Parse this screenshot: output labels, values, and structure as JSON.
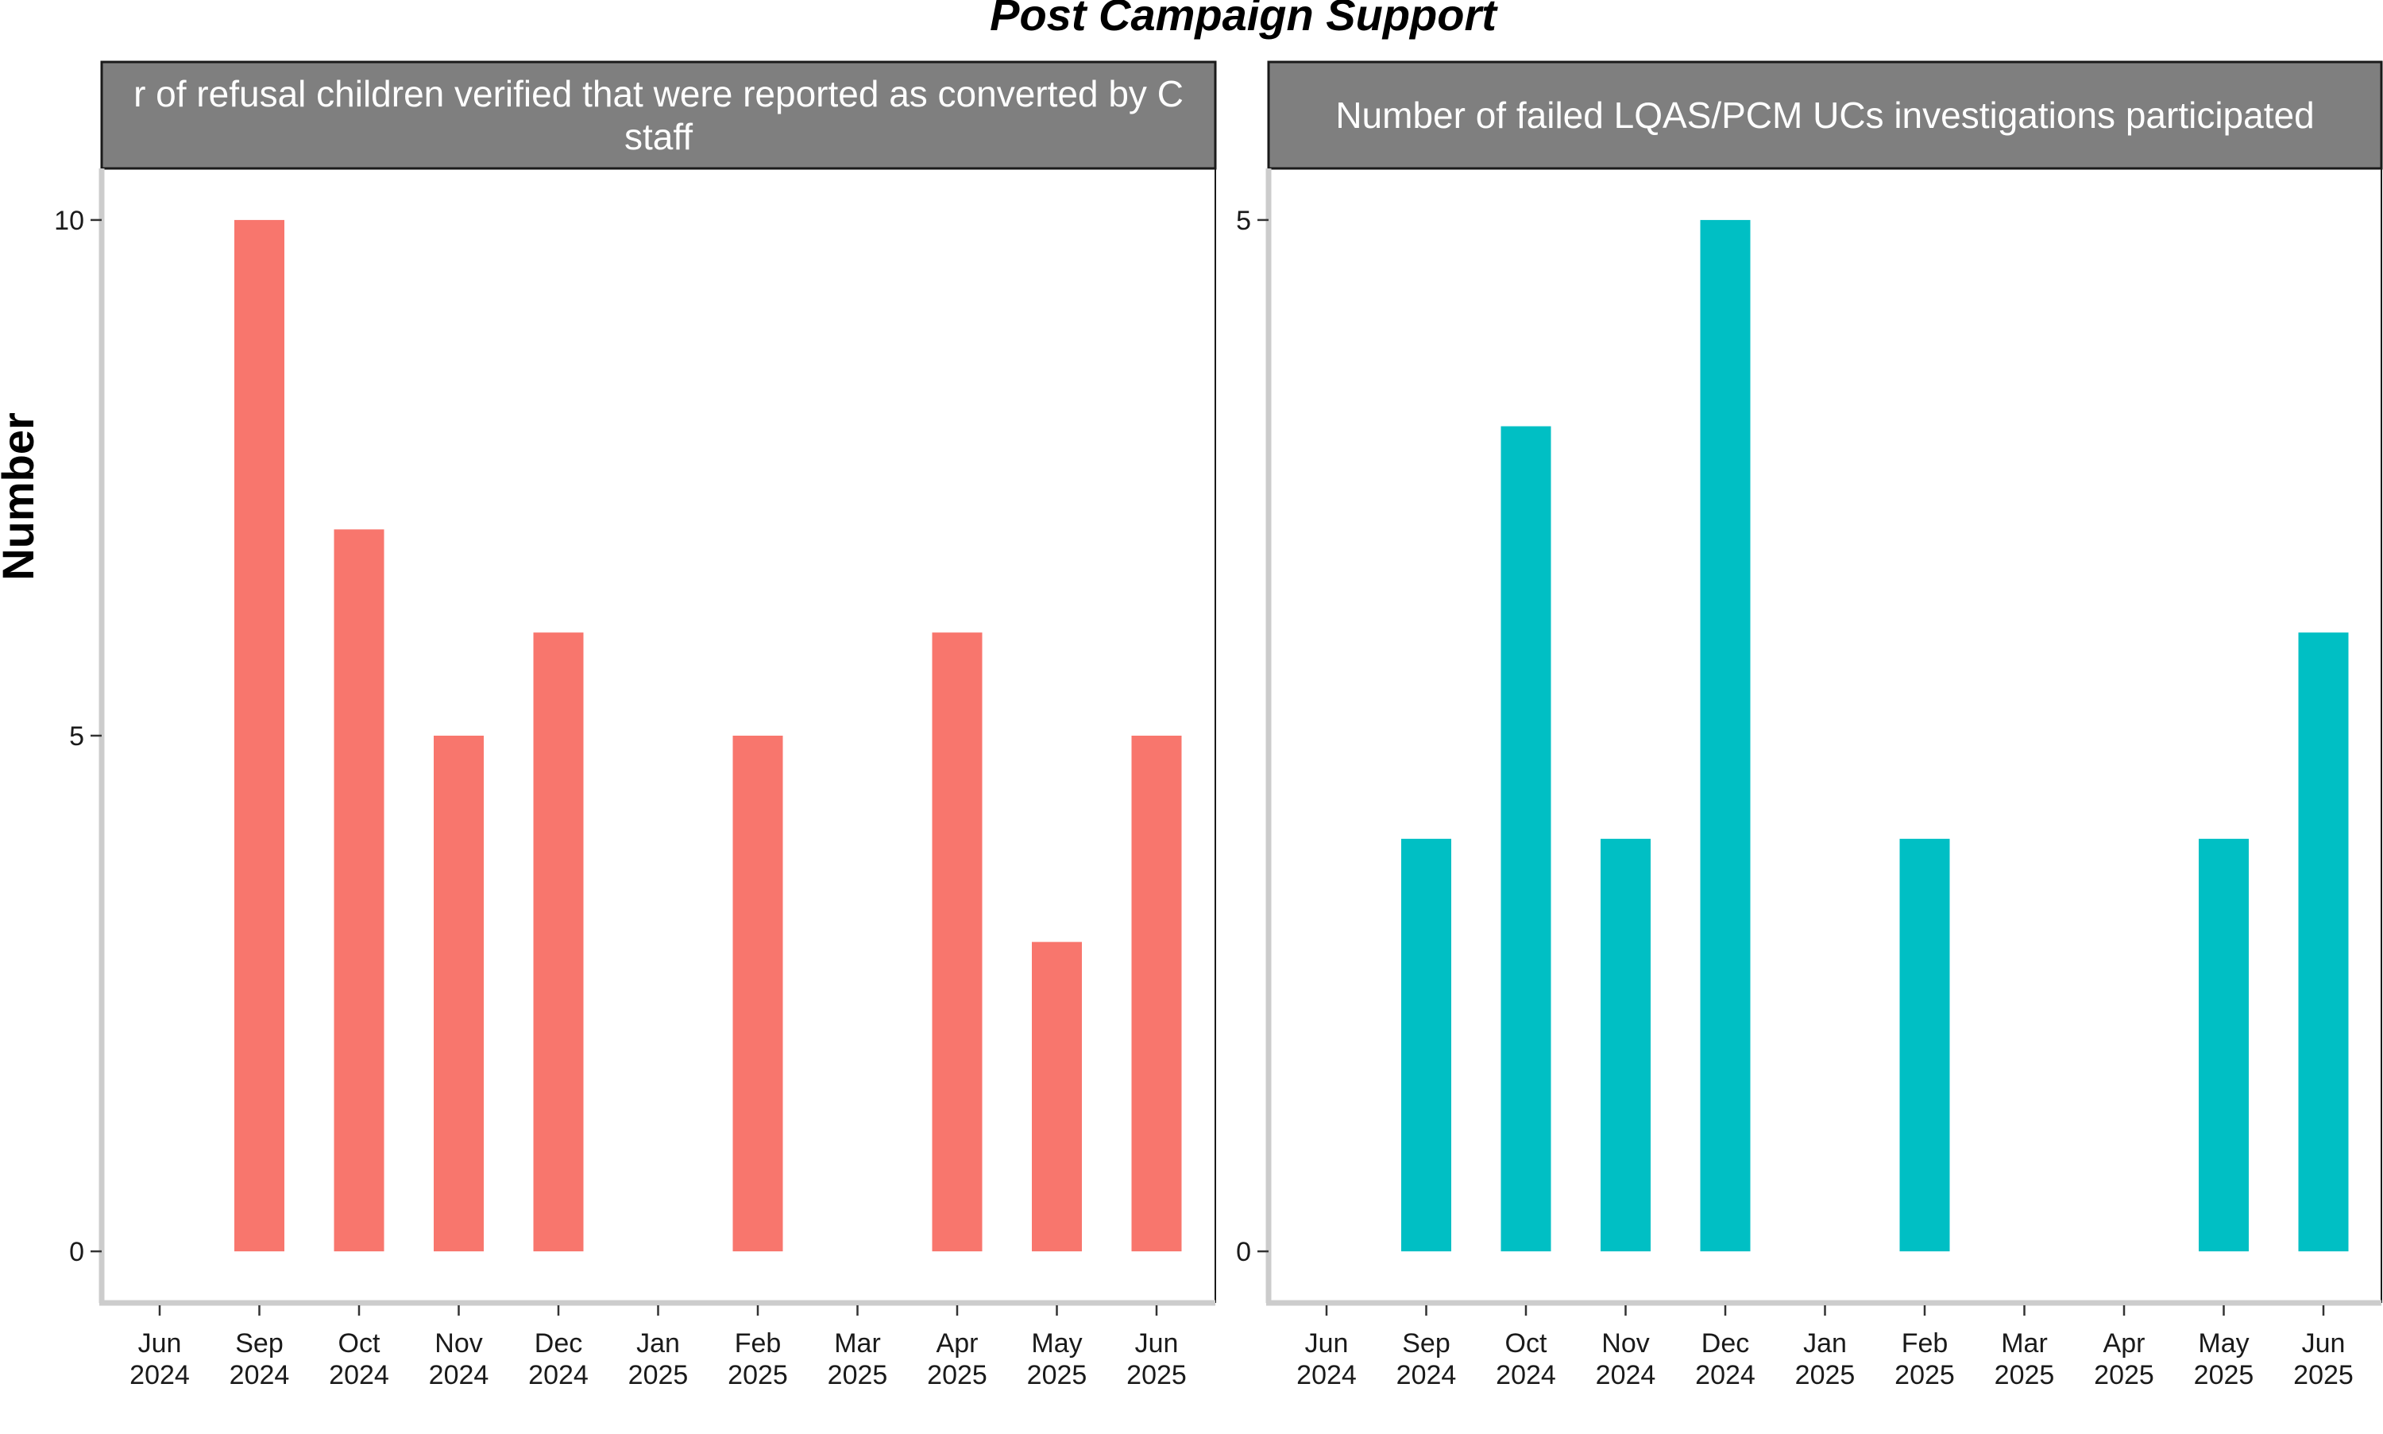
{
  "chart_data": {
    "type": "bar",
    "title": "Post Campaign Support",
    "ylabel": "Number",
    "xlabel": "",
    "grid": false,
    "legend": "none",
    "x_ticks": [
      "Jun\n2024",
      "Sep\n2024",
      "Oct\n2024",
      "Nov\n2024",
      "Dec\n2024",
      "Jan\n2025",
      "Feb\n2025",
      "Mar\n2025",
      "Apr\n2025",
      "May\n2025",
      "Jun\n2025"
    ],
    "panels": [
      {
        "strip_title": "Number of refusal children verified that were reported as converted by C staff",
        "strip_lines": [
          "r of refusal children verified that were reported as converted by C",
          "staff"
        ],
        "color": "#F8766D",
        "ylim": [
          -0.5,
          10.5
        ],
        "yticks": [
          0,
          5,
          10
        ],
        "categories": [
          "Jun 2024",
          "Sep 2024",
          "Oct 2024",
          "Nov 2024",
          "Dec 2024",
          "Jan 2025",
          "Feb 2025",
          "Mar 2025",
          "Apr 2025",
          "May 2025",
          "Jun 2025"
        ],
        "values": [
          0,
          10,
          7,
          5,
          6,
          0,
          5,
          0,
          6,
          3,
          5
        ]
      },
      {
        "strip_title": "Number of failed LQAS/PCM UCs investigations participated",
        "strip_lines": [
          "Number of failed LQAS/PCM UCs investigations participated"
        ],
        "color": "#00BFC4",
        "ylim": [
          -0.25,
          5.25
        ],
        "yticks": [
          0,
          5
        ],
        "categories": [
          "Jun 2024",
          "Sep 2024",
          "Oct 2024",
          "Nov 2024",
          "Dec 2024",
          "Jan 2025",
          "Feb 2025",
          "Mar 2025",
          "Apr 2025",
          "May 2025",
          "Jun 2025"
        ],
        "values": [
          0,
          2,
          4,
          2,
          5,
          0,
          2,
          0,
          0,
          2,
          3
        ]
      }
    ]
  }
}
